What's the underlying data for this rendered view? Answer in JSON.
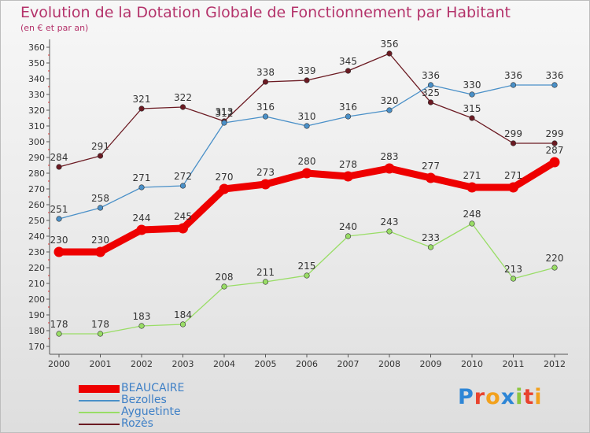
{
  "title": "Evolution de la Dotation Globale de Fonctionnement par Habitant",
  "subtitle": "(en € et par an)",
  "logo_text": "Proxiti",
  "chart_data": {
    "type": "line",
    "title": "Evolution de la Dotation Globale de Fonctionnement par Habitant",
    "subtitle": "(en € et par an)",
    "xlabel": "",
    "ylabel": "",
    "x": [
      "2000",
      "2001",
      "2002",
      "2003",
      "2004",
      "2005",
      "2006",
      "2007",
      "2008",
      "2009",
      "2010",
      "2011",
      "2012"
    ],
    "ylim": [
      170,
      360
    ],
    "ytick_step": 10,
    "grid": false,
    "legend_position": "bottom-left",
    "series": [
      {
        "name": "BEAUCAIRE",
        "color": "#ee0000",
        "values": [
          230,
          230,
          244,
          245,
          270,
          273,
          280,
          278,
          283,
          277,
          271,
          271,
          287
        ]
      },
      {
        "name": "Bezolles",
        "color": "#4a90c8",
        "values": [
          251,
          258,
          271,
          272,
          312,
          316,
          310,
          316,
          320,
          336,
          330,
          336,
          336
        ]
      },
      {
        "name": "Ayguetinte",
        "color": "#99dd66",
        "values": [
          178,
          178,
          183,
          184,
          208,
          211,
          215,
          240,
          243,
          233,
          248,
          213,
          220
        ]
      },
      {
        "name": "Rozès",
        "color": "#6b1a22",
        "values": [
          284,
          291,
          321,
          322,
          313,
          338,
          339,
          345,
          356,
          325,
          315,
          299,
          299
        ]
      }
    ]
  }
}
